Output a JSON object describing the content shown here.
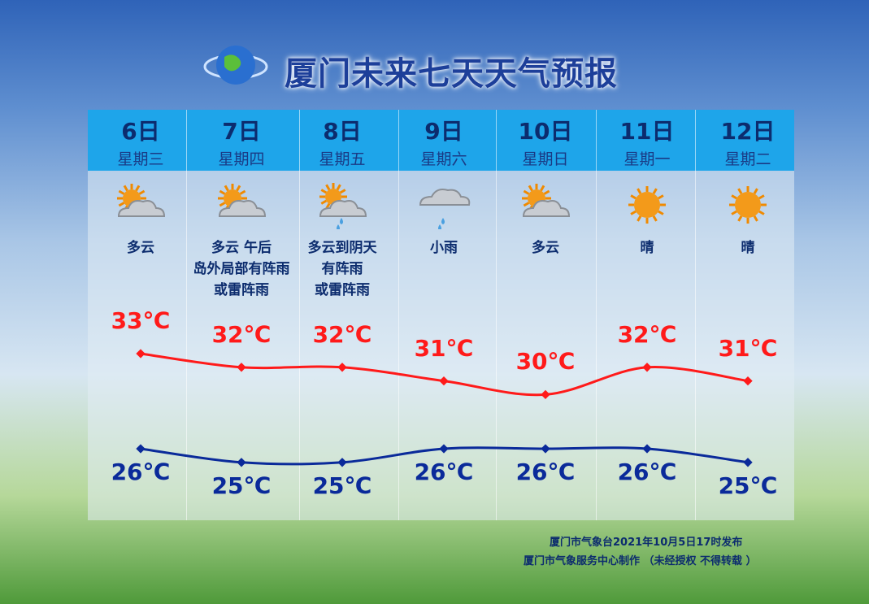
{
  "title": "厦门未来七天天气预报",
  "chart_data": {
    "type": "line",
    "categories": [
      "6日",
      "7日",
      "8日",
      "9日",
      "10日",
      "11日",
      "12日"
    ],
    "weekdays": [
      "星期三",
      "星期四",
      "星期五",
      "星期六",
      "星期日",
      "星期一",
      "星期二"
    ],
    "weather": [
      "多云",
      "多云  午后\n岛外局部有阵雨\n或雷阵雨",
      "多云到阴天\n有阵雨\n或雷阵雨",
      "小雨",
      "多云",
      "晴",
      "晴"
    ],
    "icons": [
      "partly-cloudy",
      "partly-cloudy",
      "partly-cloudy-rain",
      "rain",
      "partly-cloudy",
      "sunny",
      "sunny"
    ],
    "series": [
      {
        "values": [
          33,
          32,
          32,
          31,
          30,
          32,
          31
        ],
        "labels": [
          "33℃",
          "32℃",
          "32℃",
          "31℃",
          "30℃",
          "32℃",
          "31℃"
        ],
        "color": "#ff1a1a"
      },
      {
        "values": [
          26,
          25,
          25,
          26,
          26,
          26,
          25
        ],
        "labels": [
          "26℃",
          "25℃",
          "25℃",
          "26℃",
          "26℃",
          "26℃",
          "25℃"
        ],
        "color": "#0a2a9a"
      }
    ]
  },
  "footer": {
    "issued": "厦门市气象台2021年10月5日17时发布",
    "credit": "厦门市气象服务中心制作 （未经授权 不得转载 ）"
  }
}
